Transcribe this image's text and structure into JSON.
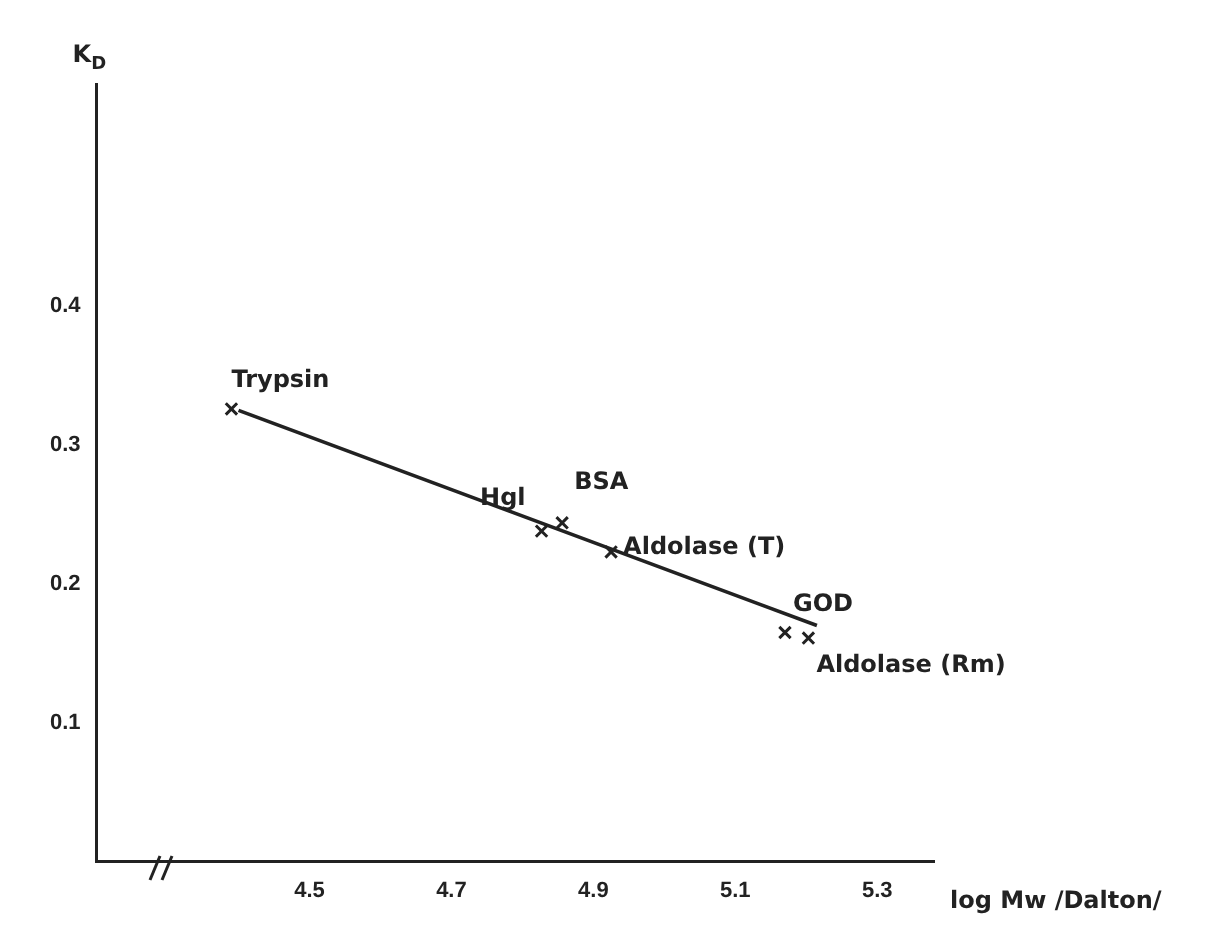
{
  "chart_data": {
    "type": "scatter",
    "xlabel": "log Mw /Dalton/",
    "ylabel": "K$_{D}$",
    "xlim": [
      4.2,
      5.38
    ],
    "ylim": [
      0,
      0.56
    ],
    "xticks": [
      4.5,
      4.7,
      4.9,
      5.1,
      5.3
    ],
    "yticks": [
      0.1,
      0.2,
      0.3,
      0.4
    ],
    "grid": false,
    "legend": false,
    "marker": "cross",
    "series": [
      {
        "color": "#222222",
        "x": [
          4.39,
          4.827,
          4.856,
          4.925,
          5.17,
          5.203
        ],
        "values": [
          0.326,
          0.238,
          0.244,
          0.223,
          0.165,
          0.161
        ]
      },
      {
        "type": "line",
        "color": "#222222",
        "x": [
          4.4,
          5.215
        ],
        "values": [
          0.325,
          0.17
        ],
        "marker": "none",
        "line_style": "solid"
      }
    ],
    "annotations": [
      {
        "text": "Trypsin",
        "x": 4.39,
        "y": 0.326
      },
      {
        "text": "Hgl",
        "x": 4.827,
        "y": 0.238
      },
      {
        "text": "BSA",
        "x": 4.856,
        "y": 0.244
      },
      {
        "text": "Aldolase (T)",
        "x": 4.925,
        "y": 0.223
      },
      {
        "text": "GOD",
        "x": 5.17,
        "y": 0.165
      },
      {
        "text": "Aldolase (Rm)",
        "x": 5.203,
        "y": 0.161
      }
    ]
  }
}
